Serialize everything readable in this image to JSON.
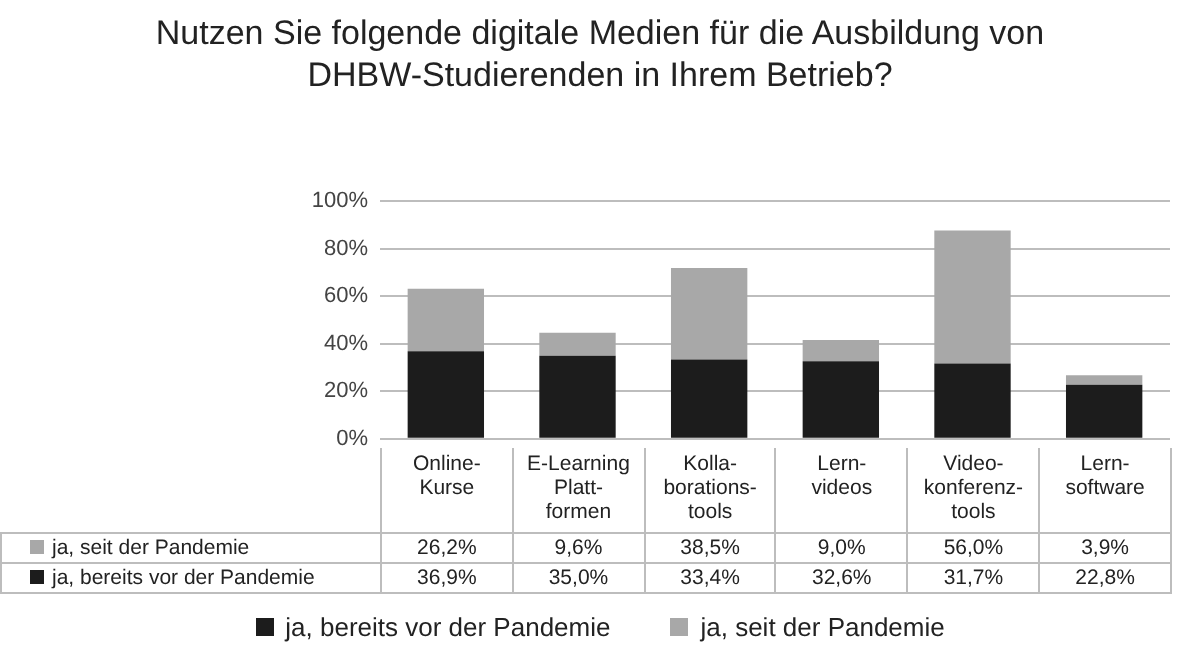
{
  "chart_data": {
    "type": "bar",
    "title": "Nutzen Sie folgende digitale Medien für die Ausbildung von DHBW-Studierenden in Ihrem Betrieb?",
    "categories": [
      "Online-Kurse",
      "E-Learning Platt-formen",
      "Kolla-borations-tools",
      "Lern-videos",
      "Video-konferenz-tools",
      "Lern-software"
    ],
    "stacked": true,
    "series": [
      {
        "name": "ja, bereits vor der Pandemie",
        "color": "#1c1c1c",
        "values": [
          36.9,
          35.0,
          33.4,
          32.6,
          31.7,
          22.8
        ],
        "value_labels": [
          "36,9%",
          "35,0%",
          "33,4%",
          "32,6%",
          "31,7%",
          "22,8%"
        ]
      },
      {
        "name": "ja, seit der Pandemie",
        "color": "#a8a8a8",
        "values": [
          26.2,
          9.6,
          38.5,
          9.0,
          56.0,
          3.9
        ],
        "value_labels": [
          "26,2%",
          "9,6%",
          "38,5%",
          "9,0%",
          "56,0%",
          "3,9%"
        ]
      }
    ],
    "ylim": [
      0,
      100
    ],
    "yticks": [
      {
        "value": 0,
        "label": "0%"
      },
      {
        "value": 20,
        "label": "20%"
      },
      {
        "value": 40,
        "label": "40%"
      },
      {
        "value": 60,
        "label": "60%"
      },
      {
        "value": 80,
        "label": "80%"
      },
      {
        "value": 100,
        "label": "100%"
      }
    ],
    "grid": "y",
    "legend": "bottom"
  }
}
